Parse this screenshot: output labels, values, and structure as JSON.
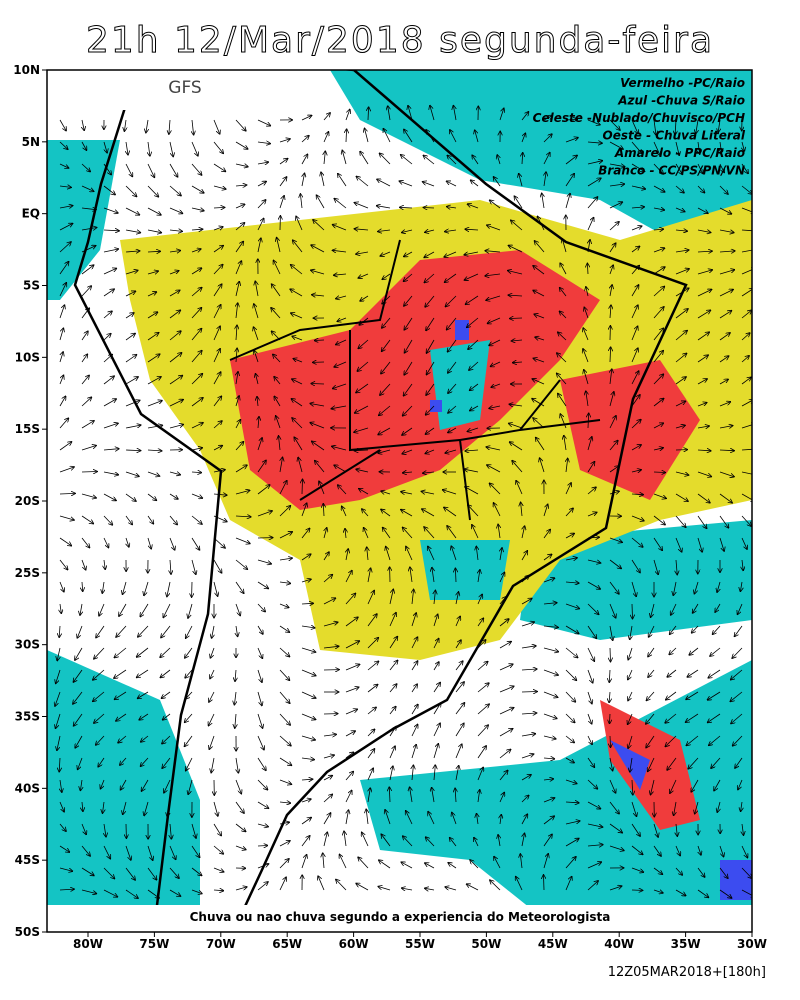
{
  "header": {
    "title": "21h 12/Mar/2018 segunda-feira",
    "model": "GFS"
  },
  "legend": [
    "Vermelho -PC/Raio",
    "Azul -Chuva S/Raio",
    "Celeste -Nublado/Chuvisco/PCH",
    "Oeste - Chuva Literal",
    "Amarelo - PPC/Raio",
    "Branco - CC/PS/PN/VN"
  ],
  "lat_labels": [
    "10N",
    "5N",
    "EQ",
    "5S",
    "10S",
    "15S",
    "20S",
    "25S",
    "30S",
    "35S",
    "40S",
    "45S",
    "50S"
  ],
  "lon_labels": [
    "80W",
    "75W",
    "70W",
    "65W",
    "60W",
    "55W",
    "50W",
    "45W",
    "40W",
    "35W",
    "30W"
  ],
  "caption": "Chuva ou nao chuva segundo a experiencia do Meteorologista",
  "footer": "12Z05MAR2018+[180h]"
}
